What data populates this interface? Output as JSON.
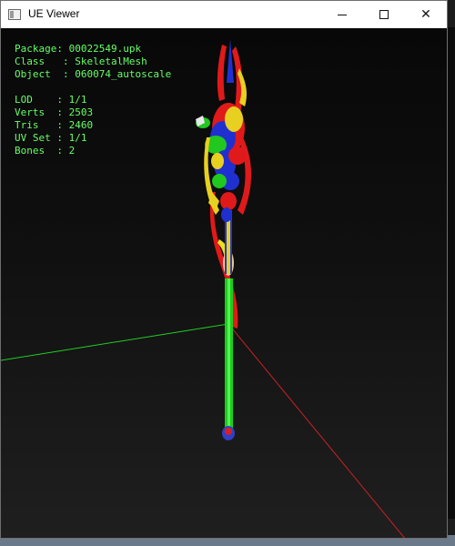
{
  "window": {
    "title": "UE Viewer",
    "minimize_symbol": "",
    "maximize_symbol": "",
    "close_symbol": "✕"
  },
  "info": {
    "package_label": "Package",
    "package_value": "00022549.upk",
    "class_label": "Class",
    "class_value": "SkeletalMesh",
    "object_label": "Object",
    "object_value": "060074_autoscale",
    "lod_label": "LOD",
    "lod_value": "1/1",
    "verts_label": "Verts",
    "verts_value": "2503",
    "tris_label": "Tris",
    "tris_value": "2460",
    "uvset_label": "UV Set",
    "uvset_value": "1/1",
    "bones_label": "Bones",
    "bones_value": "2"
  },
  "colors": {
    "info_text": "#66ff66",
    "axis_x": "#cc2222",
    "axis_y": "#22cc22"
  },
  "icons": {
    "app": "app-window-icon",
    "minimize": "minimize-icon",
    "maximize": "maximize-icon",
    "close": "close-icon"
  }
}
